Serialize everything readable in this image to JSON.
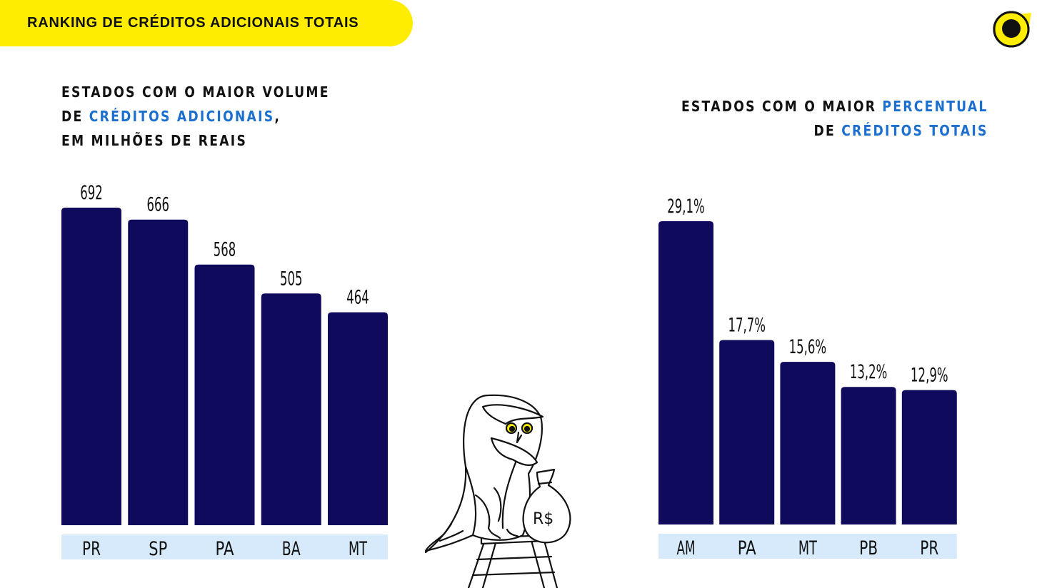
{
  "banner": {
    "title": "RANKING DE CRÉDITOS ADICIONAIS TOTAIS"
  },
  "colors": {
    "bar": "#0f0a5c",
    "label_band": "#d6eafb",
    "accent": "#ffed00",
    "highlight": "#1a6fcf"
  },
  "icons": {
    "logo": "yellow-eye-logo-icon",
    "illustration": "owl-with-money-bag-icon"
  },
  "left_heading": {
    "line1": "ESTADOS COM O MAIOR VOLUME",
    "line2_pre": "DE ",
    "line2_hl": "CRÉDITOS ADICIONAIS",
    "line2_post": ",",
    "line3": "EM MILHÕES DE REAIS"
  },
  "right_heading": {
    "line1_pre": "ESTADOS COM O MAIOR ",
    "line1_hl": "PERCENTUAL",
    "line2_pre": "DE ",
    "line2_hl": "CRÉDITOS TOTAIS"
  },
  "money_bag_label": "R$",
  "chart_data": [
    {
      "type": "bar",
      "title": "ESTADOS COM O MAIOR VOLUME DE CRÉDITOS ADICIONAIS, EM MILHÕES DE REAIS",
      "categories": [
        "PR",
        "SP",
        "PA",
        "BA",
        "MT"
      ],
      "values": [
        692,
        666,
        568,
        505,
        464
      ],
      "value_labels": [
        "692",
        "666",
        "568",
        "505",
        "464"
      ],
      "ylim": [
        0,
        692
      ],
      "grid": false,
      "legend": "none"
    },
    {
      "type": "bar",
      "title": "ESTADOS COM O MAIOR PERCENTUAL DE CRÉDITOS TOTAIS",
      "categories": [
        "AM",
        "PA",
        "MT",
        "PB",
        "PR"
      ],
      "values": [
        29.1,
        17.7,
        15.6,
        13.2,
        12.9
      ],
      "value_labels": [
        "29,1%",
        "17,7%",
        "15,6%",
        "13,2%",
        "12,9%"
      ],
      "ylim": [
        0,
        29.1
      ],
      "grid": false,
      "legend": "none"
    }
  ]
}
